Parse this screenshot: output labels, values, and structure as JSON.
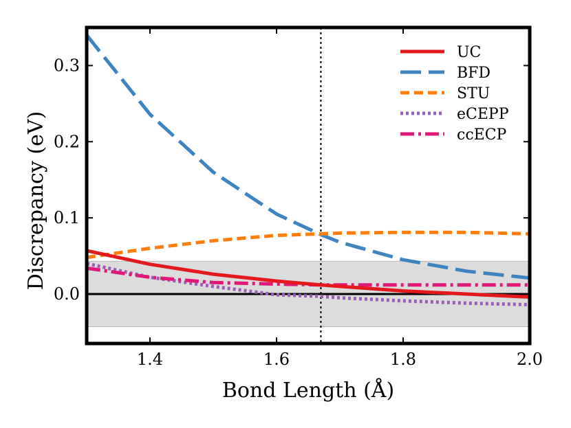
{
  "chart_data": {
    "type": "line",
    "title": "",
    "xlabel": "Bond Length (Å)",
    "ylabel": "Discrepancy (eV)",
    "xlim": [
      1.3,
      2.0
    ],
    "ylim": [
      -0.065,
      0.35
    ],
    "xticks": [
      1.4,
      1.6,
      1.8,
      2.0
    ],
    "xtick_labels": [
      "1.4",
      "1.6",
      "1.8",
      "2.0"
    ],
    "yticks": [
      0.0,
      0.1,
      0.2,
      0.3
    ],
    "ytick_labels": [
      "0.0",
      "0.1",
      "0.2",
      "0.3"
    ],
    "band": {
      "ymin": -0.043,
      "ymax": 0.043,
      "color": "#dcdcdc"
    },
    "zero_line": 0.0,
    "equilibrium_x": 1.67,
    "legend_position": "top-right",
    "x": [
      1.3,
      1.4,
      1.5,
      1.6,
      1.67,
      1.7,
      1.8,
      1.9,
      2.0
    ],
    "series": [
      {
        "name": "UC",
        "color": "#e3191c",
        "style": "solid",
        "values": [
          0.057,
          0.039,
          0.026,
          0.017,
          0.012,
          0.01,
          0.004,
          0.0,
          -0.004
        ]
      },
      {
        "name": "BFD",
        "color": "#3d84c0",
        "style": "long-dash",
        "values": [
          0.34,
          0.236,
          0.16,
          0.105,
          0.078,
          0.068,
          0.045,
          0.03,
          0.021
        ]
      },
      {
        "name": "STU",
        "color": "#ff7f0e",
        "style": "dash",
        "values": [
          0.048,
          0.06,
          0.07,
          0.077,
          0.079,
          0.08,
          0.081,
          0.081,
          0.079
        ]
      },
      {
        "name": "eCEPP",
        "color": "#9b5fb5",
        "style": "dot",
        "values": [
          0.04,
          0.022,
          0.01,
          -0.001,
          -0.003,
          -0.005,
          -0.009,
          -0.012,
          -0.014
        ]
      },
      {
        "name": "ccECP",
        "color": "#e0187a",
        "style": "dash-dot",
        "values": [
          0.034,
          0.022,
          0.015,
          0.013,
          0.012,
          0.012,
          0.012,
          0.012,
          0.012
        ]
      }
    ]
  }
}
